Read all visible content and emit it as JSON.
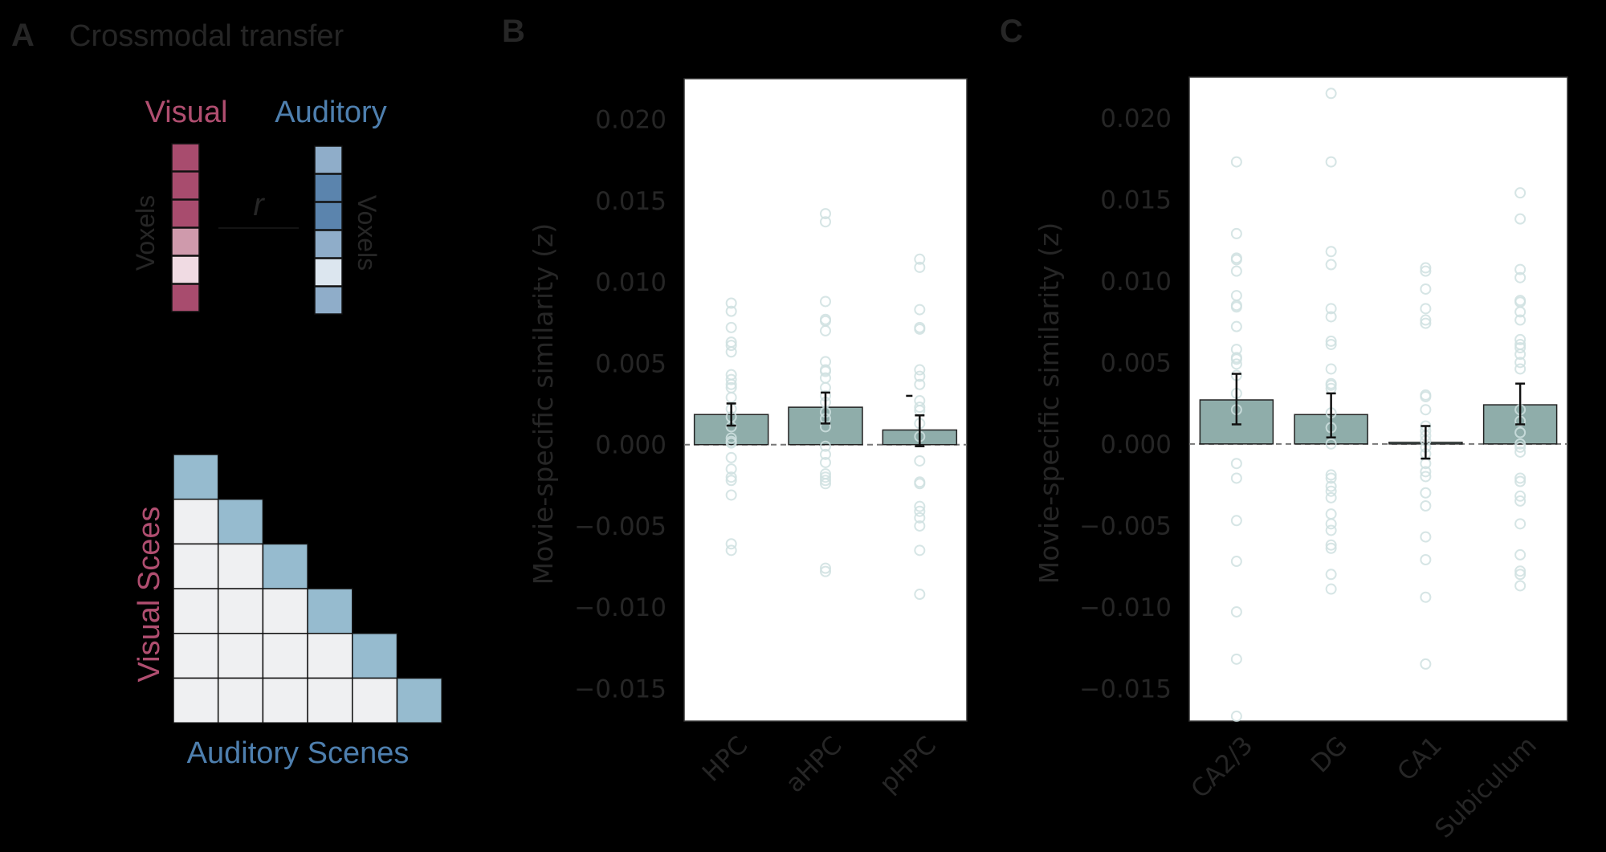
{
  "panel_a": {
    "letter": "A",
    "title": "Crossmodal transfer",
    "visual_label": "Visual",
    "auditory_label": "Auditory",
    "voxels_left": "Voxels",
    "voxels_right": "Voxels",
    "r_label": "r",
    "visual_cells": [
      "#a84c6e",
      "#a84c6e",
      "#a84c6e",
      "#cf9aac",
      "#f0dbe3",
      "#a84c6e"
    ],
    "auditory_cells": [
      "#8fadc9",
      "#5b84ad",
      "#5b84ad",
      "#8fadc9",
      "#dce6ef",
      "#8fadc9"
    ],
    "matrix_size": 6,
    "matrix_diag_color": "#96bbcf",
    "matrix_off_color": "#eff0f2",
    "matrix_ylabel": "Visual Scees",
    "matrix_xlabel": "Auditory Scenes",
    "visual_color": "#b04e70",
    "auditory_color": "#4e7fae"
  },
  "colors": {
    "bar": "#8fadaa",
    "point": "#cfe0e0",
    "text": "#262626"
  },
  "chart_data": [
    {
      "panel": "B",
      "type": "bar",
      "ylabel": "Movie-specific similarity (z)",
      "ylim": [
        -0.017,
        0.0225
      ],
      "yticks": [
        0.02,
        0.015,
        0.01,
        0.005,
        0.0,
        -0.005,
        -0.01,
        -0.015
      ],
      "ytick_labels": [
        "0.020",
        "0.015",
        "0.010",
        "0.005",
        "0.000",
        "−0.005",
        "−0.010",
        "−0.015"
      ],
      "categories": [
        "HPC",
        "aHPC",
        "pHPC"
      ],
      "values": [
        0.00185,
        0.0023,
        0.0009
      ],
      "error_low": [
        0.00117,
        0.0013,
        -0.0001
      ],
      "error_high": [
        0.00253,
        0.0032,
        0.0018
      ],
      "reference_line": 0.0,
      "extra_marks": [
        {
          "category": "pHPC",
          "value": 0.003
        }
      ],
      "points": [
        [
          0.0087,
          0.0082,
          0.0072,
          0.0063,
          0.0061,
          0.0057,
          0.0043,
          0.004,
          0.0037,
          0.0035,
          0.0029,
          0.0022,
          0.0017,
          0.0011,
          0.0004,
          0.0001,
          0.0002,
          -0.0008,
          -0.0015,
          -0.002,
          -0.0022,
          -0.0031,
          -0.0061,
          -0.0065
        ],
        [
          0.0142,
          0.0137,
          0.0088,
          0.0077,
          0.0076,
          0.007,
          0.0051,
          0.0046,
          0.0045,
          0.0041,
          0.0035,
          0.003,
          0.0026,
          0.002,
          0.0016,
          0.0011,
          -0.0001,
          -0.0006,
          -0.0011,
          -0.0018,
          -0.002,
          -0.0022,
          -0.0024,
          -0.0076,
          -0.0078
        ],
        [
          0.0114,
          0.0109,
          0.0083,
          0.0072,
          0.0071,
          0.0046,
          0.0042,
          0.0037,
          0.0027,
          0.0023,
          0.0021,
          0.0013,
          0.0005,
          -0.001,
          -0.0023,
          -0.0024,
          -0.0038,
          -0.0041,
          -0.0045,
          -0.005,
          -0.0065,
          -0.0092
        ]
      ]
    },
    {
      "panel": "C",
      "type": "bar",
      "ylabel": "Movie-specific similarity (z)",
      "ylim": [
        -0.017,
        0.0225
      ],
      "yticks": [
        0.02,
        0.015,
        0.01,
        0.005,
        0.0,
        -0.005,
        -0.01,
        -0.015
      ],
      "ytick_labels": [
        "0.020",
        "0.015",
        "0.010",
        "0.005",
        "0.000",
        "−0.005",
        "−0.010",
        "−0.015"
      ],
      "categories": [
        "CA2/3",
        "DG",
        "CA1",
        "Subiculum"
      ],
      "values": [
        0.0027,
        0.0018,
        0.0001,
        0.0024
      ],
      "error_low": [
        0.0012,
        0.0004,
        -0.0009,
        0.0012
      ],
      "error_high": [
        0.0043,
        0.0031,
        0.0011,
        0.0037
      ],
      "reference_line": 0.0,
      "points": [
        [
          0.0173,
          0.0129,
          0.0114,
          0.0113,
          0.0106,
          0.0091,
          0.0085,
          0.0084,
          0.0072,
          0.0058,
          0.0053,
          0.0052,
          0.0049,
          0.0042,
          0.0031,
          0.0021,
          -0.0012,
          -0.0021,
          -0.0047,
          -0.0072,
          -0.0103,
          -0.0132,
          -0.0167
        ],
        [
          0.0215,
          0.0173,
          0.0118,
          0.011,
          0.0083,
          0.0078,
          0.0063,
          0.0061,
          0.0046,
          0.0037,
          0.0036,
          0.0034,
          0.0019,
          0.001,
          0.0,
          -0.0019,
          -0.0021,
          -0.0026,
          -0.0029,
          -0.0033,
          -0.0043,
          -0.0049,
          -0.0053,
          -0.0062,
          -0.0064,
          -0.008,
          -0.0089
        ],
        [
          0.0108,
          0.0106,
          0.0095,
          0.0083,
          0.0076,
          0.0074,
          0.003,
          0.0029,
          0.0021,
          0.0011,
          0.0008,
          0.0005,
          0.0002,
          -0.0002,
          -0.0006,
          -0.0012,
          -0.0017,
          -0.002,
          -0.003,
          -0.0038,
          -0.0057,
          -0.0071,
          -0.0094,
          -0.0135
        ],
        [
          0.0154,
          0.0138,
          0.0107,
          0.0102,
          0.0088,
          0.0087,
          0.0081,
          0.0076,
          0.0064,
          0.0061,
          0.0059,
          0.0055,
          0.005,
          0.0046,
          0.0021,
          0.0014,
          0.0007,
          0.0,
          -0.0002,
          -0.0005,
          -0.0021,
          -0.0023,
          -0.0032,
          -0.0035,
          -0.0049,
          -0.0068,
          -0.0078,
          -0.008,
          -0.0087
        ]
      ]
    }
  ],
  "panel_b": {
    "letter": "B"
  },
  "panel_c": {
    "letter": "C"
  }
}
